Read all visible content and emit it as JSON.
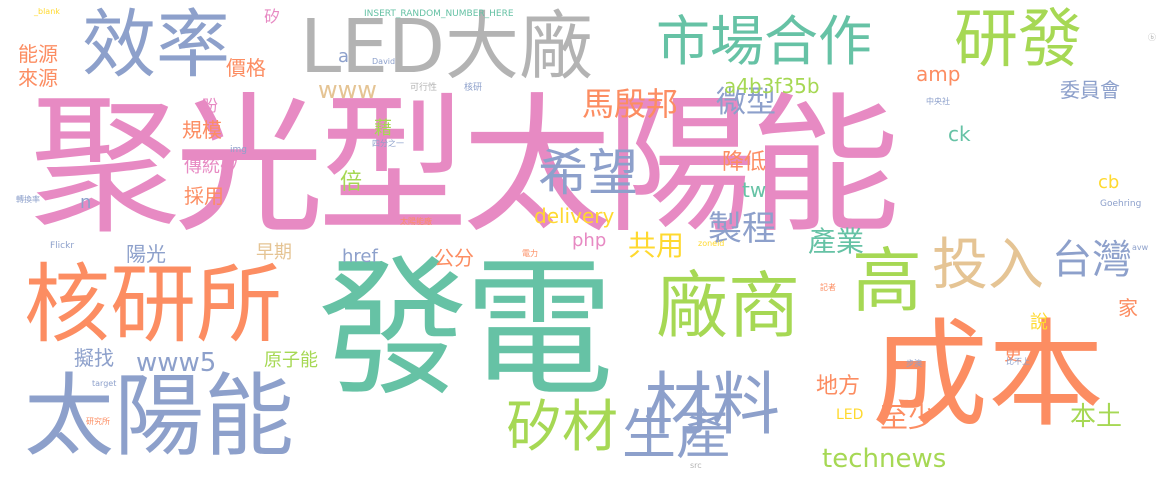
{
  "palette": {
    "pink": "#e78ac3",
    "green": "#66c2a5",
    "orange": "#fc8d62",
    "blue": "#8da0cb",
    "lime": "#a6d854",
    "gray": "#b3b3b3",
    "tan": "#e5c494",
    "yellow": "#ffd92f"
  },
  "words": [
    "聚光型太陽能",
    "發電",
    "成本",
    "太陽能",
    "核研所",
    "效率",
    "LED大廠",
    "市場合作",
    "研發",
    "廠商",
    "高",
    "投入",
    "台灣",
    "材料",
    "矽材",
    "生產",
    "希望",
    "馬殷邦",
    "微型",
    "規模",
    "降低",
    "www",
    "www5",
    "technews",
    "delivery",
    "a4b3f35b",
    "製程",
    "共用",
    "產業",
    "至少",
    "本土",
    "地方",
    "能源",
    "來源",
    "價格",
    "amp",
    "委員會",
    "php",
    "href",
    "ck",
    "cb",
    "tw",
    "陽光",
    "早期",
    "公分",
    "原子能",
    "擬找",
    "採用",
    "傳統矽",
    "倍",
    "藉",
    "家",
    "說",
    "更",
    "LED",
    "矽",
    "_blank",
    "INSERT_RANDOM_NUMBER_HERE",
    "Goehring",
    "Flickr",
    "David",
    "img",
    "zoneid",
    "target",
    "src",
    "avw",
    "可行性",
    "核研",
    "四分之一",
    "電力",
    "記者",
    "轉換率",
    "研究所",
    "中央社",
    "太陽能廠",
    "比不上",
    "步澳",
    "n",
    "a",
    "ⓑ",
    "盼"
  ]
}
